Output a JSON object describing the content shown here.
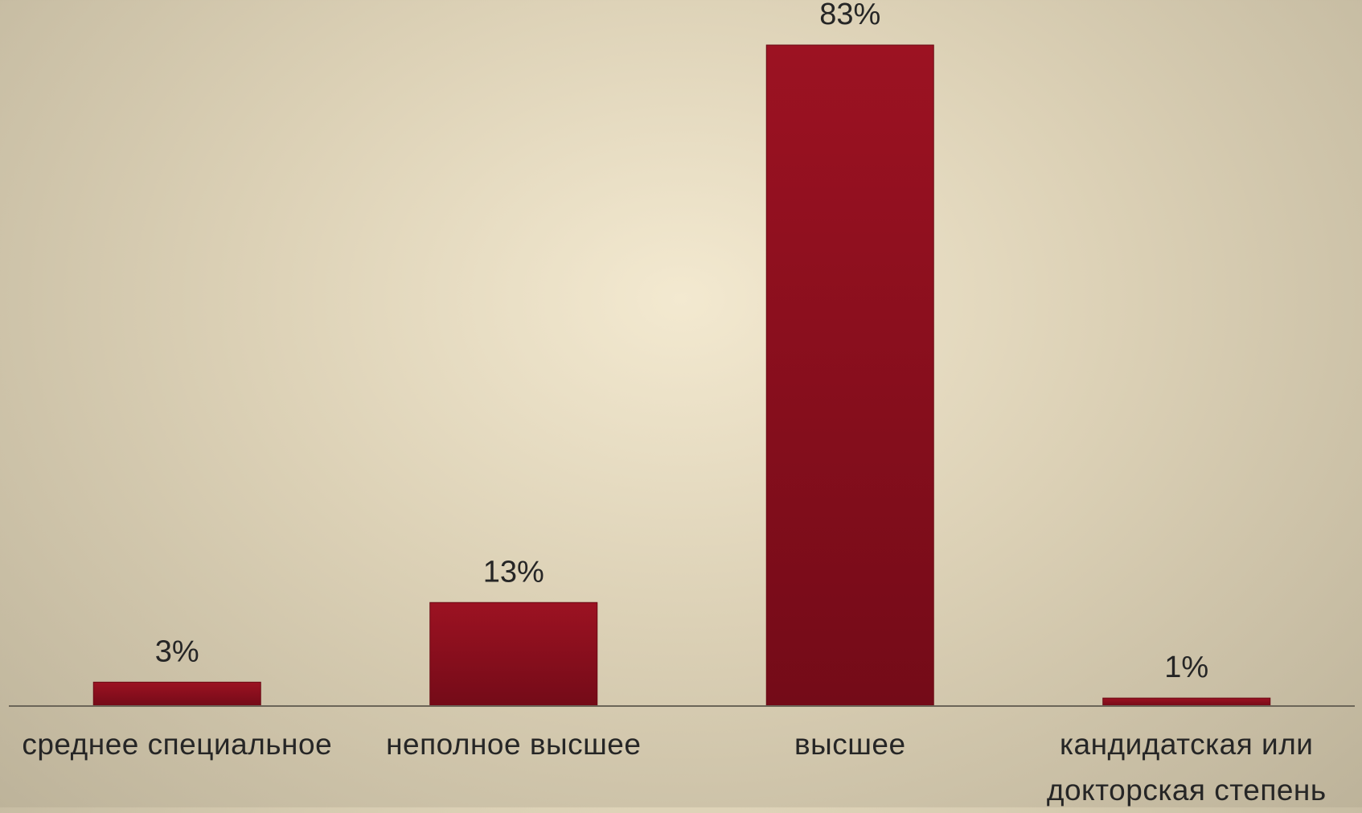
{
  "chart_data": {
    "type": "bar",
    "categories": [
      "среднее специальное",
      "неполное высшее",
      "высшее",
      "кандидатская или докторская степень"
    ],
    "values": [
      3,
      13,
      83,
      1
    ],
    "value_labels": [
      "3%",
      "13%",
      "83%",
      "1%"
    ],
    "color": "#8c0e1e"
  }
}
